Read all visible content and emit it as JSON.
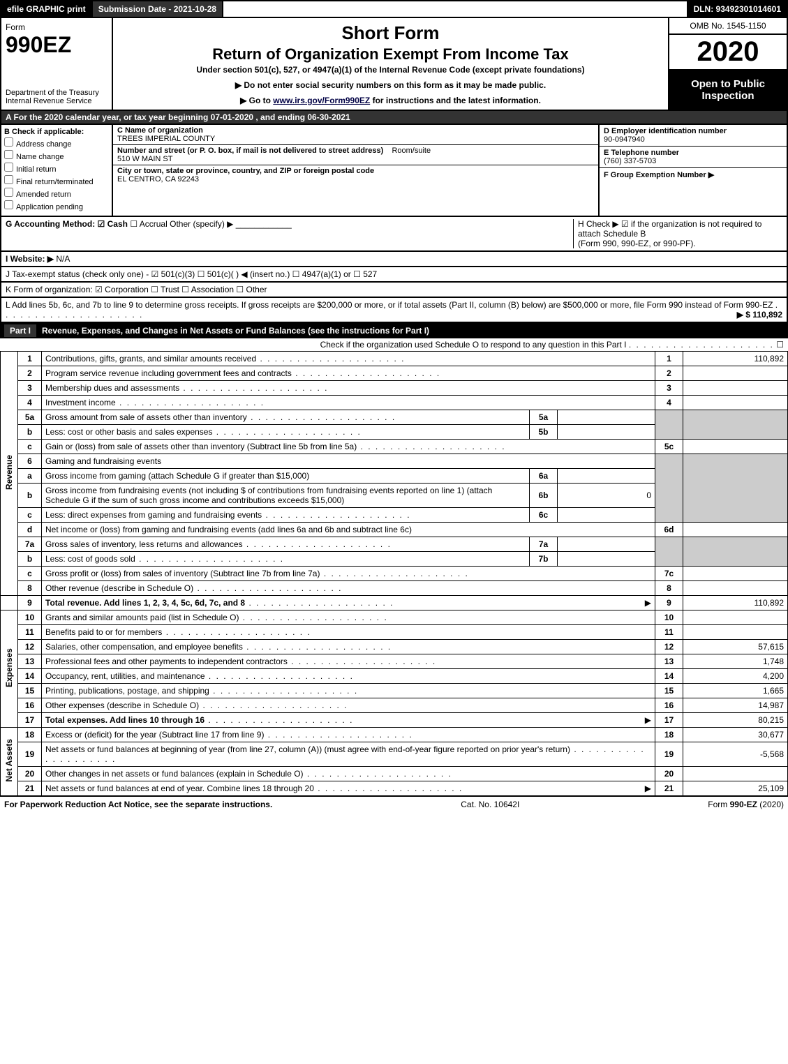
{
  "topbar": {
    "efile": "efile GRAPHIC print",
    "submission": "Submission Date - 2021-10-28",
    "dln": "DLN: 93492301014601"
  },
  "header": {
    "form_word": "Form",
    "form_num": "990EZ",
    "dept1": "Department of the Treasury",
    "dept2": "Internal Revenue Service",
    "short_form": "Short Form",
    "return_title": "Return of Organization Exempt From Income Tax",
    "subtitle": "Under section 501(c), 527, or 4947(a)(1) of the Internal Revenue Code (except private foundations)",
    "arrow1": "▶ Do not enter social security numbers on this form as it may be made public.",
    "arrow2_pre": "▶ Go to ",
    "arrow2_link": "www.irs.gov/Form990EZ",
    "arrow2_post": " for instructions and the latest information.",
    "omb": "OMB No. 1545-1150",
    "year": "2020",
    "open_to": "Open to Public Inspection"
  },
  "row_a": "A For the 2020 calendar year, or tax year beginning 07-01-2020 , and ending 06-30-2021",
  "col_b": {
    "hdr": "B  Check if applicable:",
    "c1": "Address change",
    "c2": "Name change",
    "c3": "Initial return",
    "c4": "Final return/terminated",
    "c5": "Amended return",
    "c6": "Application pending"
  },
  "col_c": {
    "name_lbl": "C Name of organization",
    "name": "TREES IMPERIAL COUNTY",
    "addr_lbl": "Number and street (or P. O. box, if mail is not delivered to street address)",
    "room_lbl": "Room/suite",
    "addr": "510 W MAIN ST",
    "city_lbl": "City or town, state or province, country, and ZIP or foreign postal code",
    "city": "EL CENTRO, CA  92243"
  },
  "col_d": {
    "ein_lbl": "D Employer identification number",
    "ein": "90-0947940",
    "tel_lbl": "E Telephone number",
    "tel": "(760) 337-5703",
    "grp_lbl": "F Group Exemption Number  ▶"
  },
  "row_g": {
    "lbl": "G Accounting Method:",
    "cash": "☑ Cash",
    "accrual": "☐ Accrual",
    "other": "Other (specify) ▶",
    "h_lbl": "H  Check ▶ ☑ if the organization is not required to attach Schedule B",
    "h_sub": "(Form 990, 990-EZ, or 990-PF)."
  },
  "row_i": {
    "lbl": "I Website: ▶",
    "val": "N/A"
  },
  "row_j": "J Tax-exempt status (check only one) - ☑ 501(c)(3)  ☐ 501(c)(  ) ◀ (insert no.)  ☐ 4947(a)(1) or  ☐ 527",
  "row_k": "K Form of organization:  ☑ Corporation  ☐ Trust  ☐ Association  ☐ Other",
  "row_l": {
    "text": "L Add lines 5b, 6c, and 7b to line 9 to determine gross receipts. If gross receipts are $200,000 or more, or if total assets (Part II, column (B) below) are $500,000 or more, file Form 990 instead of Form 990-EZ",
    "amt": "▶ $ 110,892"
  },
  "part1": {
    "num": "Part I",
    "title": "Revenue, Expenses, and Changes in Net Assets or Fund Balances (see the instructions for Part I)",
    "check": "Check if the organization used Schedule O to respond to any question in this Part I",
    "check_val": "☐"
  },
  "sections": {
    "revenue": "Revenue",
    "expenses": "Expenses",
    "netassets": "Net Assets"
  },
  "lines": {
    "l1": {
      "n": "1",
      "d": "Contributions, gifts, grants, and similar amounts received",
      "c": "1",
      "a": "110,892"
    },
    "l2": {
      "n": "2",
      "d": "Program service revenue including government fees and contracts",
      "c": "2",
      "a": ""
    },
    "l3": {
      "n": "3",
      "d": "Membership dues and assessments",
      "c": "3",
      "a": ""
    },
    "l4": {
      "n": "4",
      "d": "Investment income",
      "c": "4",
      "a": ""
    },
    "l5a": {
      "n": "5a",
      "d": "Gross amount from sale of assets other than inventory",
      "sb": "5a"
    },
    "l5b": {
      "n": "b",
      "d": "Less: cost or other basis and sales expenses",
      "sb": "5b"
    },
    "l5c": {
      "n": "c",
      "d": "Gain or (loss) from sale of assets other than inventory (Subtract line 5b from line 5a)",
      "c": "5c",
      "a": ""
    },
    "l6": {
      "n": "6",
      "d": "Gaming and fundraising events"
    },
    "l6a": {
      "n": "a",
      "d": "Gross income from gaming (attach Schedule G if greater than $15,000)",
      "sb": "6a"
    },
    "l6b": {
      "n": "b",
      "d": "Gross income from fundraising events (not including $            of contributions from fundraising events reported on line 1) (attach Schedule G if the sum of such gross income and contributions exceeds $15,000)",
      "sb": "6b",
      "sv": "0"
    },
    "l6c": {
      "n": "c",
      "d": "Less: direct expenses from gaming and fundraising events",
      "sb": "6c"
    },
    "l6d": {
      "n": "d",
      "d": "Net income or (loss) from gaming and fundraising events (add lines 6a and 6b and subtract line 6c)",
      "c": "6d",
      "a": ""
    },
    "l7a": {
      "n": "7a",
      "d": "Gross sales of inventory, less returns and allowances",
      "sb": "7a"
    },
    "l7b": {
      "n": "b",
      "d": "Less: cost of goods sold",
      "sb": "7b"
    },
    "l7c": {
      "n": "c",
      "d": "Gross profit or (loss) from sales of inventory (Subtract line 7b from line 7a)",
      "c": "7c",
      "a": ""
    },
    "l8": {
      "n": "8",
      "d": "Other revenue (describe in Schedule O)",
      "c": "8",
      "a": ""
    },
    "l9": {
      "n": "9",
      "d": "Total revenue. Add lines 1, 2, 3, 4, 5c, 6d, 7c, and 8",
      "c": "9",
      "a": "110,892",
      "arrow": "▶"
    },
    "l10": {
      "n": "10",
      "d": "Grants and similar amounts paid (list in Schedule O)",
      "c": "10",
      "a": ""
    },
    "l11": {
      "n": "11",
      "d": "Benefits paid to or for members",
      "c": "11",
      "a": ""
    },
    "l12": {
      "n": "12",
      "d": "Salaries, other compensation, and employee benefits",
      "c": "12",
      "a": "57,615"
    },
    "l13": {
      "n": "13",
      "d": "Professional fees and other payments to independent contractors",
      "c": "13",
      "a": "1,748"
    },
    "l14": {
      "n": "14",
      "d": "Occupancy, rent, utilities, and maintenance",
      "c": "14",
      "a": "4,200"
    },
    "l15": {
      "n": "15",
      "d": "Printing, publications, postage, and shipping",
      "c": "15",
      "a": "1,665"
    },
    "l16": {
      "n": "16",
      "d": "Other expenses (describe in Schedule O)",
      "c": "16",
      "a": "14,987"
    },
    "l17": {
      "n": "17",
      "d": "Total expenses. Add lines 10 through 16",
      "c": "17",
      "a": "80,215",
      "arrow": "▶"
    },
    "l18": {
      "n": "18",
      "d": "Excess or (deficit) for the year (Subtract line 17 from line 9)",
      "c": "18",
      "a": "30,677"
    },
    "l19": {
      "n": "19",
      "d": "Net assets or fund balances at beginning of year (from line 27, column (A)) (must agree with end-of-year figure reported on prior year's return)",
      "c": "19",
      "a": "-5,568"
    },
    "l20": {
      "n": "20",
      "d": "Other changes in net assets or fund balances (explain in Schedule O)",
      "c": "20",
      "a": ""
    },
    "l21": {
      "n": "21",
      "d": "Net assets or fund balances at end of year. Combine lines 18 through 20",
      "c": "21",
      "a": "25,109",
      "arrow": "▶"
    }
  },
  "footer": {
    "left": "For Paperwork Reduction Act Notice, see the separate instructions.",
    "mid": "Cat. No. 10642I",
    "right_pre": "Form ",
    "right_bold": "990-EZ",
    "right_post": " (2020)"
  },
  "colors": {
    "black": "#000000",
    "darkgrey": "#333333",
    "lightgrey": "#cccccc",
    "white": "#ffffff"
  }
}
